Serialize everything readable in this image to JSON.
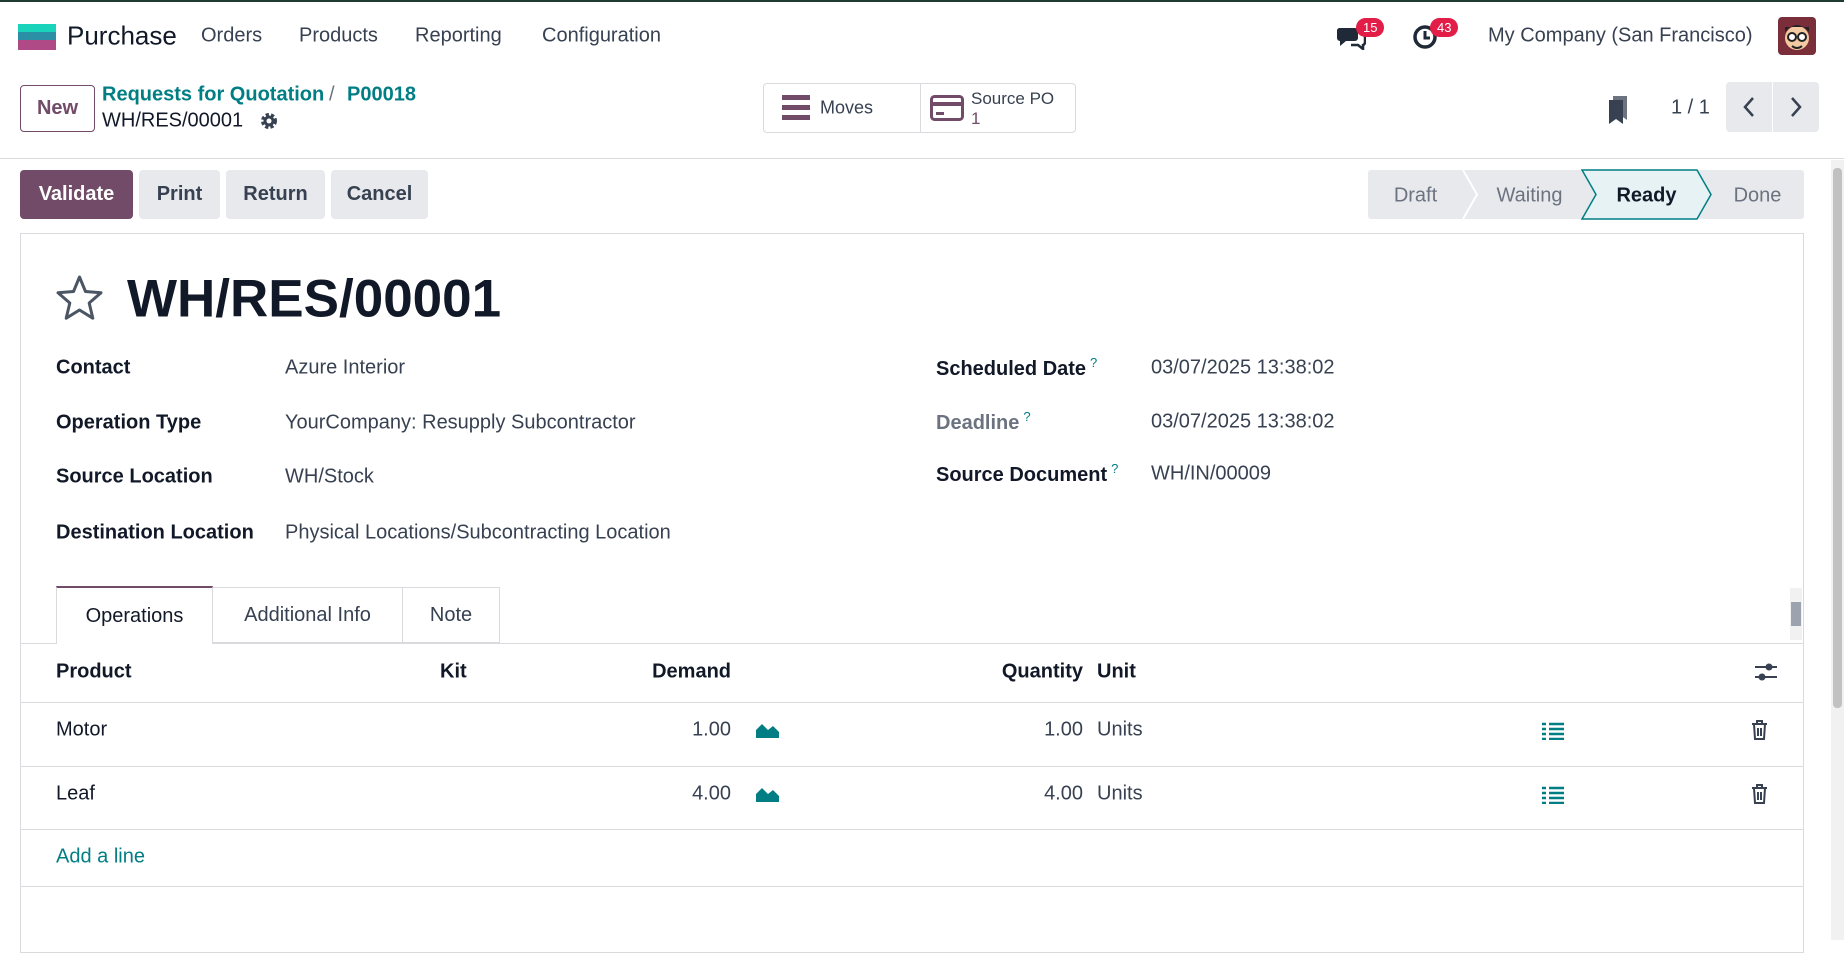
{
  "navbar": {
    "app": "Purchase",
    "menu": [
      "Orders",
      "Products",
      "Reporting",
      "Configuration"
    ],
    "messages_badge": "15",
    "activities_badge": "43",
    "company": "My Company (San Francisco)"
  },
  "control_panel": {
    "new_button": "New",
    "breadcrumb": [
      "Requests for Quotation",
      "P00018"
    ],
    "separator": "/",
    "record": "WH/RES/00001",
    "smart_buttons": {
      "moves": "Moves",
      "source_po": "Source PO",
      "source_po_count": "1"
    },
    "pager": "1 / 1"
  },
  "actions": [
    "Validate",
    "Print",
    "Return",
    "Cancel"
  ],
  "status": {
    "steps": [
      "Draft",
      "Waiting",
      "Ready",
      "Done"
    ],
    "current": 2
  },
  "form": {
    "title": "WH/RES/00001",
    "left_fields": [
      {
        "label": "Contact",
        "value": "Azure Interior"
      },
      {
        "label": "Operation Type",
        "value": "YourCompany: Resupply Subcontractor"
      },
      {
        "label": "Source Location",
        "value": "WH/Stock"
      },
      {
        "label": "Destination Location",
        "value": "Physical Locations/Subcontracting Location"
      }
    ],
    "right_fields": [
      {
        "label": "Scheduled Date",
        "help": "?",
        "value": "03/07/2025 13:38:02"
      },
      {
        "label": "Deadline",
        "help": "?",
        "value": "03/07/2025 13:38:02"
      },
      {
        "label": "Source Document",
        "help": "?",
        "value": "WH/IN/00009"
      }
    ]
  },
  "tabs": [
    "Operations",
    "Additional Info",
    "Note"
  ],
  "table": {
    "headers": [
      "Product",
      "Kit",
      "Demand",
      "Quantity",
      "Unit"
    ],
    "rows": [
      {
        "product": "Motor",
        "demand": "1.00",
        "quantity": "1.00",
        "unit": "Units"
      },
      {
        "product": "Leaf",
        "demand": "4.00",
        "quantity": "4.00",
        "unit": "Units"
      }
    ],
    "add_line": "Add a line"
  }
}
